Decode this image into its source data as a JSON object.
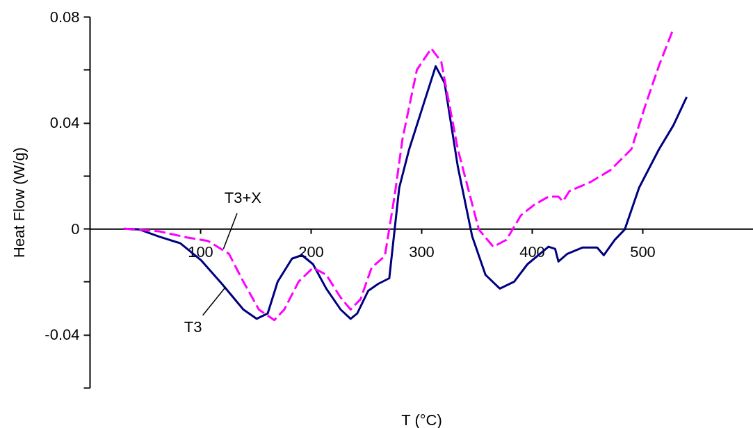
{
  "chart_data": {
    "type": "line",
    "xlabel": "T (°C)",
    "ylabel": "Heat Flow (W/g)",
    "xlim": [
      0,
      600
    ],
    "xticks": [
      100,
      200,
      300,
      400,
      500
    ],
    "ylim": [
      -0.06,
      0.08
    ],
    "yticks": [
      {
        "value": -0.06,
        "label": null
      },
      -0.04,
      {
        "value": -0.02,
        "label": null
      },
      0,
      {
        "value": 0.02,
        "label": null
      },
      0.04,
      {
        "value": 0.06,
        "label": null
      },
      0.08
    ],
    "grid": false,
    "marker": "none",
    "series": [
      {
        "color": "#000080",
        "line_style": "solid",
        "x": [
          31,
          45,
          63,
          82,
          101,
          120,
          139,
          151,
          161,
          170,
          183,
          192,
          202,
          214,
          227,
          236,
          242,
          252,
          261,
          271,
          280,
          289,
          302,
          313,
          321,
          333,
          346,
          358,
          371,
          384,
          396,
          415,
          421,
          424,
          432,
          446,
          459,
          465,
          475,
          484,
          497,
          515,
          528,
          540
        ],
        "values": [
          0,
          -0.0003,
          -0.003,
          -0.0055,
          -0.012,
          -0.021,
          -0.0305,
          -0.034,
          -0.032,
          -0.02,
          -0.0113,
          -0.01,
          -0.0134,
          -0.0226,
          -0.0305,
          -0.034,
          -0.032,
          -0.0234,
          -0.0208,
          -0.0187,
          0.0155,
          0.03,
          0.047,
          0.0613,
          0.055,
          0.0234,
          -0.0029,
          -0.0174,
          -0.0226,
          -0.02,
          -0.0134,
          -0.0068,
          -0.0076,
          -0.0124,
          -0.0095,
          -0.0071,
          -0.0071,
          -0.01,
          -0.0042,
          -0.0003,
          0.0155,
          0.03,
          0.039,
          0.0497
        ]
      },
      {
        "color": "#ff00ff",
        "line_style": "dashed",
        "x": [
          31,
          63,
          88,
          107,
          126,
          139,
          153,
          167,
          176,
          189,
          202,
          214,
          227,
          236,
          245,
          255,
          267,
          276,
          283,
          296,
          309,
          318,
          333,
          352,
          365,
          377,
          390,
          402,
          415,
          424,
          428,
          434,
          453,
          471,
          490,
          503,
          515,
          528
        ],
        "values": [
          0,
          -0.001,
          -0.0033,
          -0.0046,
          -0.0095,
          -0.02,
          -0.0305,
          -0.0345,
          -0.0305,
          -0.02,
          -0.0147,
          -0.0174,
          -0.026,
          -0.0305,
          -0.0266,
          -0.0147,
          -0.0103,
          0.0129,
          0.034,
          0.06,
          0.068,
          0.063,
          0.03,
          -0.0003,
          -0.0068,
          -0.0042,
          0.005,
          0.009,
          0.0121,
          0.0121,
          0.0103,
          0.0142,
          0.0176,
          0.0221,
          0.03,
          0.047,
          0.0616,
          0.0755
        ]
      }
    ],
    "annotations": [
      {
        "text": "T3+X",
        "x": 121,
        "y": -0.0076
      },
      {
        "text": "T3",
        "x": 123,
        "y": -0.022
      }
    ]
  }
}
